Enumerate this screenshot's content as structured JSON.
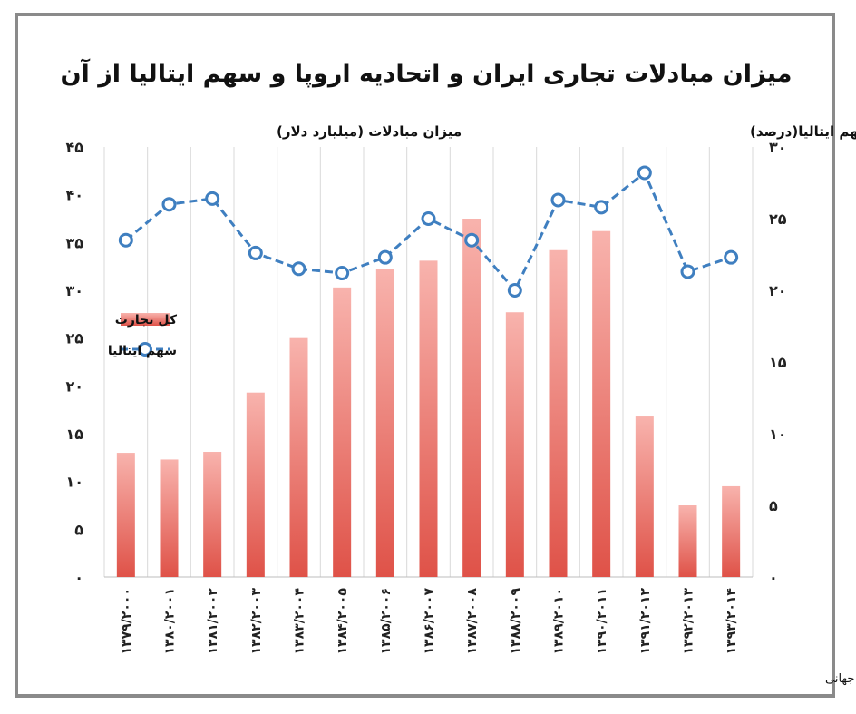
{
  "chart_data": {
    "type": "bar",
    "title": "میزان مبادلات تجاری ایران و اتحادیه اروپا و سهم ایتالیا از آن",
    "ylabel_left": "میزان مبادلات (میلیارد دلار)",
    "ylabel_right": "سهم ایتالیا(درصد)",
    "source": "تحلیل و استنتاج: احسان سلطانی بر اساس داده های سازمان تجارت جهانی",
    "categories": [
      "۱۳۷۹/۲۰۰۰",
      "۱۳۸۰/۲۰۰۱",
      "۱۳۸۱/۲۰۰۲",
      "۱۳۸۲/۲۰۰۳",
      "۱۳۸۳/۲۰۰۴",
      "۱۳۸۴/۲۰۰۵",
      "۱۳۸۵/۲۰۰۶",
      "۱۳۸۶/۲۰۰۷",
      "۱۳۸۷/۲۰۰۸",
      "۱۳۸۸/۲۰۰۹",
      "۱۳۸۹/۲۰۱۰",
      "۱۳۹۰/۲۰۱۱",
      "۱۳۹۱/۲۰۱۲",
      "۱۳۹۲/۲۰۱۳",
      "۱۳۹۳/۲۰۱۴"
    ],
    "yticks_left": [
      "۰",
      "۵",
      "۱۰",
      "۱۵",
      "۲۰",
      "۲۵",
      "۳۰",
      "۳۵",
      "۴۰",
      "۴۵"
    ],
    "yticks_right": [
      "۰",
      "۵",
      "۱۰",
      "۱۵",
      "۲۰",
      "۲۵",
      "۳۰"
    ],
    "ylim_left": [
      0,
      45
    ],
    "ylim_right": [
      0,
      30
    ],
    "series": [
      {
        "name": "کل تجارت",
        "type": "bar",
        "axis": "left",
        "color": "#e25a50",
        "values": [
          13,
          12.3,
          13.1,
          19.3,
          25,
          30.3,
          32.2,
          33.1,
          37.5,
          27.7,
          34.2,
          36.2,
          16.8,
          7.5,
          9.5
        ]
      },
      {
        "name": "سهم ایتالیا",
        "type": "line",
        "axis": "right",
        "color": "#3f7fc0",
        "values": [
          23.5,
          26,
          26.4,
          22.6,
          21.5,
          21.2,
          22.3,
          25,
          23.5,
          20,
          26.3,
          25.8,
          28.2,
          21.3,
          22.3
        ]
      }
    ],
    "legend_position": "left-middle",
    "grid": true
  }
}
